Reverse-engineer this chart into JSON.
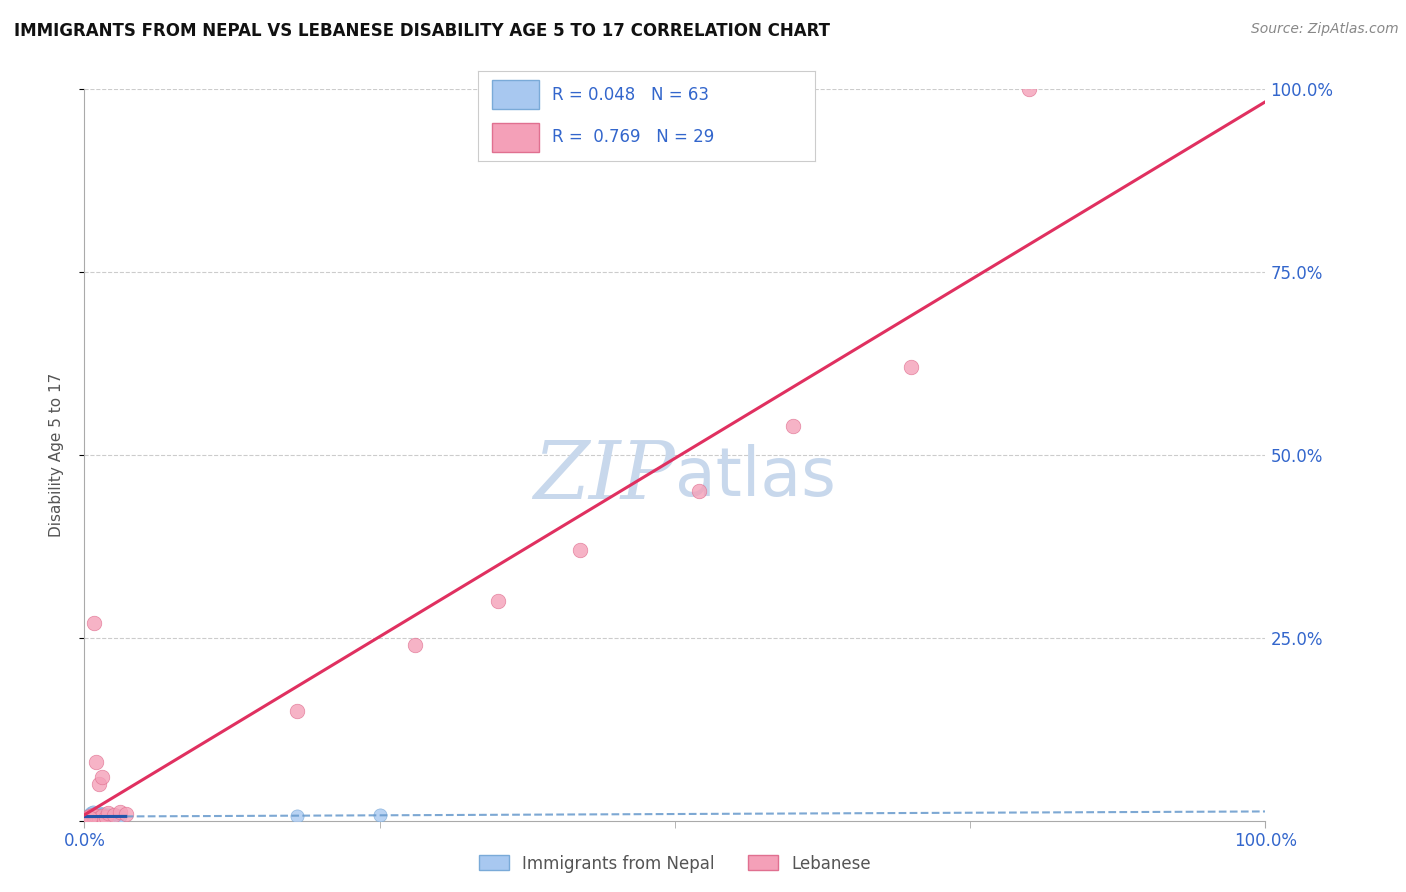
{
  "title": "IMMIGRANTS FROM NEPAL VS LEBANESE DISABILITY AGE 5 TO 17 CORRELATION CHART",
  "source": "Source: ZipAtlas.com",
  "ylabel_label": "Disability Age 5 to 17",
  "legend_label1": "Immigrants from Nepal",
  "legend_label2": "Lebanese",
  "r1": 0.048,
  "n1": 63,
  "r2": 0.769,
  "n2": 29,
  "nepal_color": "#a8c8f0",
  "nepal_edge_color": "#7aaad8",
  "lebanese_color": "#f4a0b8",
  "lebanese_edge_color": "#e07090",
  "nepal_line_solid_color": "#2255aa",
  "nepal_line_dash_color": "#6699cc",
  "lebanese_line_color": "#e03060",
  "watermark_color": "#c8d8ec",
  "nepal_x": [
    0.3,
    0.4,
    0.5,
    0.5,
    0.6,
    0.6,
    0.6,
    0.7,
    0.7,
    0.7,
    0.8,
    0.8,
    0.8,
    0.9,
    0.9,
    1.0,
    1.0,
    1.0,
    1.1,
    1.1,
    1.1,
    1.2,
    1.2,
    1.3,
    1.3,
    1.4,
    1.4,
    1.5,
    1.5,
    1.6,
    1.6,
    1.7,
    1.7,
    1.8,
    1.9,
    2.0,
    2.0,
    2.1,
    2.2,
    2.3,
    2.4,
    2.5,
    2.6,
    2.8,
    3.0,
    0.2,
    0.3,
    0.4,
    0.5,
    0.6,
    0.8,
    0.9,
    1.0,
    1.2,
    1.5,
    1.8,
    2.0,
    0.4,
    0.6,
    0.7,
    1.0,
    25.0,
    18.0
  ],
  "nepal_y": [
    0.3,
    0.5,
    0.2,
    0.8,
    0.4,
    0.6,
    1.0,
    0.3,
    0.7,
    1.2,
    0.4,
    0.9,
    0.5,
    0.3,
    0.8,
    0.4,
    0.6,
    1.1,
    0.5,
    0.7,
    0.3,
    0.6,
    1.0,
    0.4,
    0.8,
    0.5,
    0.7,
    0.3,
    0.6,
    0.4,
    0.9,
    0.5,
    0.7,
    0.4,
    0.6,
    0.5,
    0.8,
    0.3,
    0.7,
    0.5,
    0.6,
    0.4,
    0.7,
    0.5,
    0.6,
    0.4,
    0.5,
    0.3,
    0.7,
    0.4,
    0.6,
    0.5,
    0.3,
    0.6,
    0.4,
    0.5,
    0.3,
    0.8,
    0.6,
    0.4,
    0.5,
    0.8,
    0.6
  ],
  "lebanese_x": [
    0.2,
    0.3,
    0.4,
    0.5,
    0.6,
    0.7,
    0.8,
    0.9,
    1.0,
    1.2,
    1.5,
    1.8,
    2.0,
    2.5,
    3.0,
    3.5,
    0.8,
    1.2,
    0.5,
    18.0,
    28.0,
    35.0,
    42.0,
    52.0,
    60.0,
    70.0,
    1.0,
    1.5,
    80.0
  ],
  "lebanese_y": [
    0.3,
    0.5,
    0.4,
    0.6,
    0.3,
    0.8,
    0.4,
    0.5,
    0.7,
    0.4,
    0.6,
    0.5,
    1.0,
    0.8,
    1.2,
    0.9,
    27.0,
    5.0,
    0.4,
    15.0,
    24.0,
    30.0,
    37.0,
    45.0,
    54.0,
    62.0,
    8.0,
    6.0,
    100.0
  ]
}
